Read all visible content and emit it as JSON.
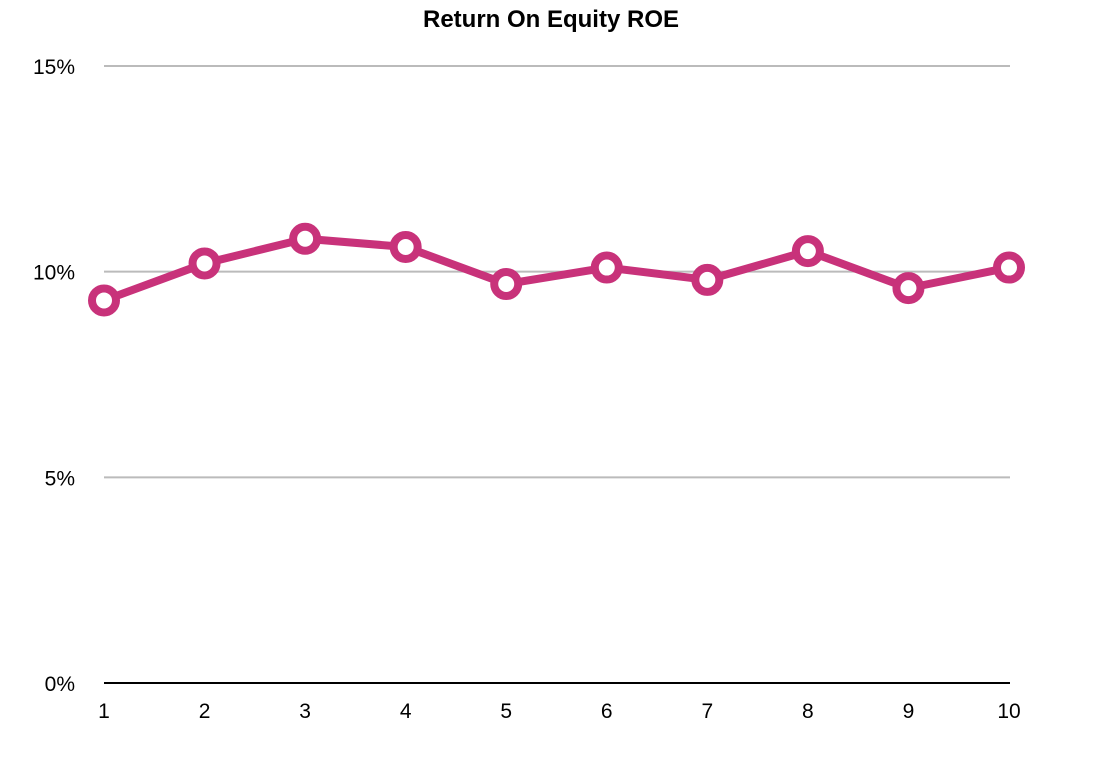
{
  "chart_data": {
    "type": "line",
    "title": "Return On Equity ROE",
    "xlabel": "",
    "ylabel": "",
    "categories": [
      "1",
      "2",
      "3",
      "4",
      "5",
      "6",
      "7",
      "8",
      "9",
      "10"
    ],
    "series": [
      {
        "values": [
          9.3,
          10.2,
          10.8,
          10.6,
          9.7,
          10.1,
          9.8,
          10.5,
          9.6,
          10.1
        ],
        "color": "#c8327a"
      }
    ],
    "ylim": [
      0,
      15
    ],
    "yticks": [
      0,
      5,
      10,
      15
    ],
    "ytick_labels": [
      "0%",
      "5%",
      "10%",
      "15%"
    ],
    "grid": true,
    "gridline_color": "#bbbbbb",
    "axis_color": "#000000",
    "marker": "hollow-circle",
    "legend": "none"
  }
}
